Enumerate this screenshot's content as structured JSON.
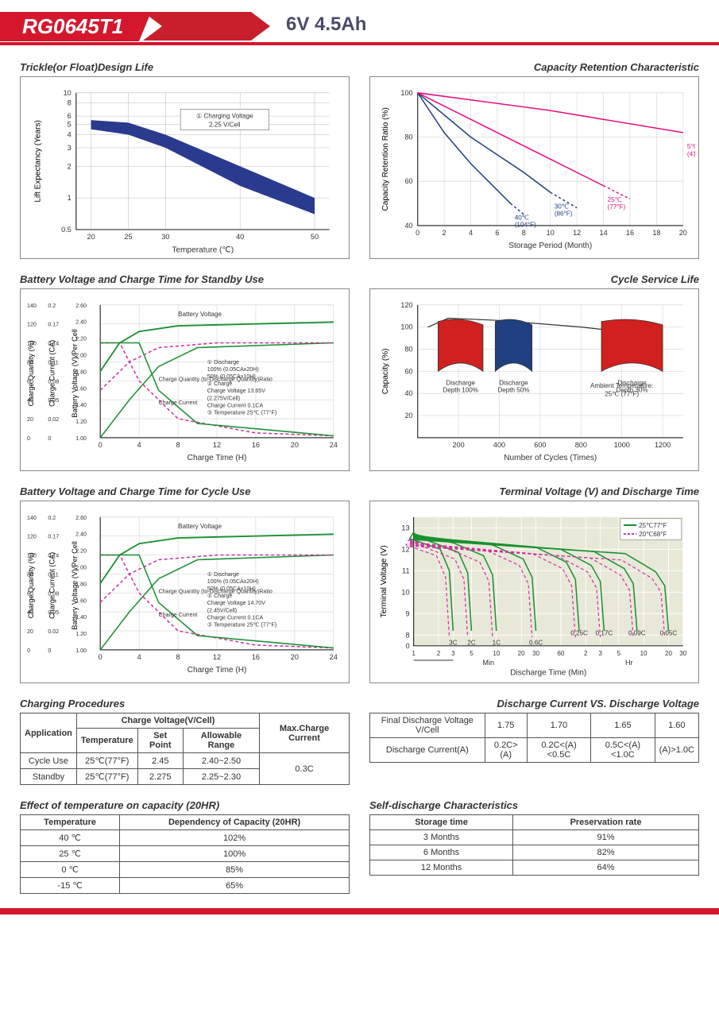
{
  "header": {
    "model": "RG0645T1",
    "spec": "6V  4.5Ah"
  },
  "charts": {
    "trickle": {
      "title": "Trickle(or Float)Design Life",
      "ylabel": "Lift Expectancy (Years)",
      "xlabel": "Temperature (℃)",
      "xticks": [
        20,
        25,
        30,
        40,
        50
      ],
      "yticks": [
        0.5,
        1,
        2,
        3,
        4,
        5,
        6,
        8,
        10
      ],
      "band_top": [
        [
          20,
          5.5
        ],
        [
          25,
          5.2
        ],
        [
          30,
          4
        ],
        [
          40,
          2
        ],
        [
          50,
          1
        ]
      ],
      "band_bot": [
        [
          20,
          4.5
        ],
        [
          25,
          4
        ],
        [
          30,
          3
        ],
        [
          40,
          1.3
        ],
        [
          50,
          0.7
        ]
      ],
      "band_color": "#2a3b8f",
      "note": "① Charging Voltage\n2.25 V/Cell",
      "grid_color": "#aaa"
    },
    "retention": {
      "title": "Capacity Retention Characteristic",
      "ylabel": "Capacity Retention Ratio (%)",
      "xlabel": "Storage Period (Month)",
      "xticks": [
        0,
        2,
        4,
        6,
        8,
        10,
        12,
        14,
        16,
        18,
        20
      ],
      "yticks": [
        40,
        60,
        80,
        100
      ],
      "curves": [
        {
          "label": "40℃\n(104°F)",
          "color": "#204080",
          "d": [
            [
              0,
              100
            ],
            [
              2,
              82
            ],
            [
              4,
              68
            ],
            [
              6,
              56
            ],
            [
              7,
              50
            ]
          ],
          "dash": [
            [
              7,
              50
            ],
            [
              8,
              45
            ]
          ]
        },
        {
          "label": "30℃\n(86°F)",
          "color": "#204080",
          "d": [
            [
              0,
              100
            ],
            [
              4,
              80
            ],
            [
              8,
              64
            ],
            [
              10,
              55
            ]
          ],
          "dash": [
            [
              10,
              55
            ],
            [
              12,
              48
            ]
          ]
        },
        {
          "label": "25℃\n(77°F)",
          "color": "#e01080",
          "d": [
            [
              0,
              100
            ],
            [
              5,
              85
            ],
            [
              10,
              70
            ],
            [
              14,
              58
            ]
          ],
          "dash": [
            [
              14,
              58
            ],
            [
              16,
              52
            ]
          ]
        },
        {
          "label": "5℃\n(41°F)",
          "color": "#e01080",
          "d": [
            [
              0,
              100
            ],
            [
              10,
              92
            ],
            [
              20,
              82
            ]
          ],
          "dash": null
        }
      ]
    },
    "standby": {
      "title": "Battery Voltage and Charge Time for Standby Use",
      "ylabel1": "Charge Quantity (%)",
      "ylabel2": "Charge Current (CA)",
      "ylabel3": "Battery Voltage (V)/Per Cell",
      "xlabel": "Charge Time (H)",
      "xticks": [
        0,
        4,
        8,
        12,
        16,
        20,
        24
      ],
      "note": "① Discharge\n   100% (0.05CAx20H)\n   50% (0.05CAx10H)\n② Charge\n   Charge Voltage 13.65V\n   (2.275V/Cell)\n   Charge Current 0.1CA\n③ Temperature 25℃ (77°F)"
    },
    "cycle_life": {
      "title": "Cycle Service Life",
      "ylabel": "Capacity (%)",
      "xlabel": "Number of Cycles (Times)",
      "xticks": [
        200,
        400,
        600,
        800,
        1000,
        1200
      ],
      "yticks": [
        20,
        40,
        60,
        80,
        100,
        120
      ],
      "regions": [
        {
          "label": "Discharge\nDepth 100%",
          "color": "#d02020",
          "x": [
            100,
            320
          ]
        },
        {
          "label": "Discharge\nDepth 50%",
          "color": "#204080",
          "x": [
            380,
            560
          ]
        },
        {
          "label": "Discharge\nDepth 30%",
          "color": "#d02020",
          "x": [
            900,
            1200
          ]
        }
      ],
      "note": "Ambient Temperature:\n25℃ (77°F)"
    },
    "cycle_use": {
      "title": "Battery Voltage and Charge Time for Cycle Use",
      "xlabel": "Charge Time (H)",
      "note": "① Discharge\n   100% (0.05CAx20H)\n   50% (0.05CAx10H)\n② Charge\n   Charge Voltage 14.70V\n   (2.45V/Cell)\n   Charge Current 0.1CA\n③ Temperature 25℃ (77°F)"
    },
    "terminal": {
      "title": "Terminal Voltage (V) and Discharge Time",
      "ylabel": "Terminal Voltage (V)",
      "xlabel": "Discharge Time (Min)",
      "yticks": [
        0,
        8,
        9,
        10,
        11,
        12,
        13
      ],
      "legend": [
        {
          "color": "#1a9030",
          "label": "25℃77°F",
          "dash": false
        },
        {
          "color": "#d030a0",
          "label": "20℃68°F",
          "dash": true
        }
      ],
      "rates": [
        "3C",
        "2C",
        "1C",
        "0.6C",
        "0.25C",
        "0.17C",
        "0.09C",
        "0.05C"
      ]
    }
  },
  "tables": {
    "charging": {
      "title": "Charging Procedures",
      "headers": [
        "Application",
        "Charge Voltage(V/Cell)",
        "Max.Charge Current"
      ],
      "subheaders": [
        "Temperature",
        "Set Point",
        "Allowable Range"
      ],
      "rows": [
        [
          "Cycle Use",
          "25℃(77°F)",
          "2.45",
          "2.40~2.50",
          "0.3C"
        ],
        [
          "Standby",
          "25℃(77°F)",
          "2.275",
          "2.25~2.30",
          ""
        ]
      ]
    },
    "discharge_v": {
      "title": "Discharge Current VS. Discharge Voltage",
      "row1": [
        "Final Discharge Voltage V/Cell",
        "1.75",
        "1.70",
        "1.65",
        "1.60"
      ],
      "row2": [
        "Discharge Current(A)",
        "0.2C>(A)",
        "0.2C<(A)<0.5C",
        "0.5C<(A)<1.0C",
        "(A)>1.0C"
      ]
    },
    "temp_effect": {
      "title": "Effect of temperature on capacity (20HR)",
      "headers": [
        "Temperature",
        "Dependency of Capacity (20HR)"
      ],
      "rows": [
        [
          "40 ℃",
          "102%"
        ],
        [
          "25 ℃",
          "100%"
        ],
        [
          "0 ℃",
          "85%"
        ],
        [
          "-15 ℃",
          "65%"
        ]
      ]
    },
    "self_discharge": {
      "title": "Self-discharge Characteristics",
      "headers": [
        "Storage time",
        "Preservation rate"
      ],
      "rows": [
        [
          "3 Months",
          "91%"
        ],
        [
          "6 Months",
          "82%"
        ],
        [
          "12 Months",
          "64%"
        ]
      ]
    }
  }
}
